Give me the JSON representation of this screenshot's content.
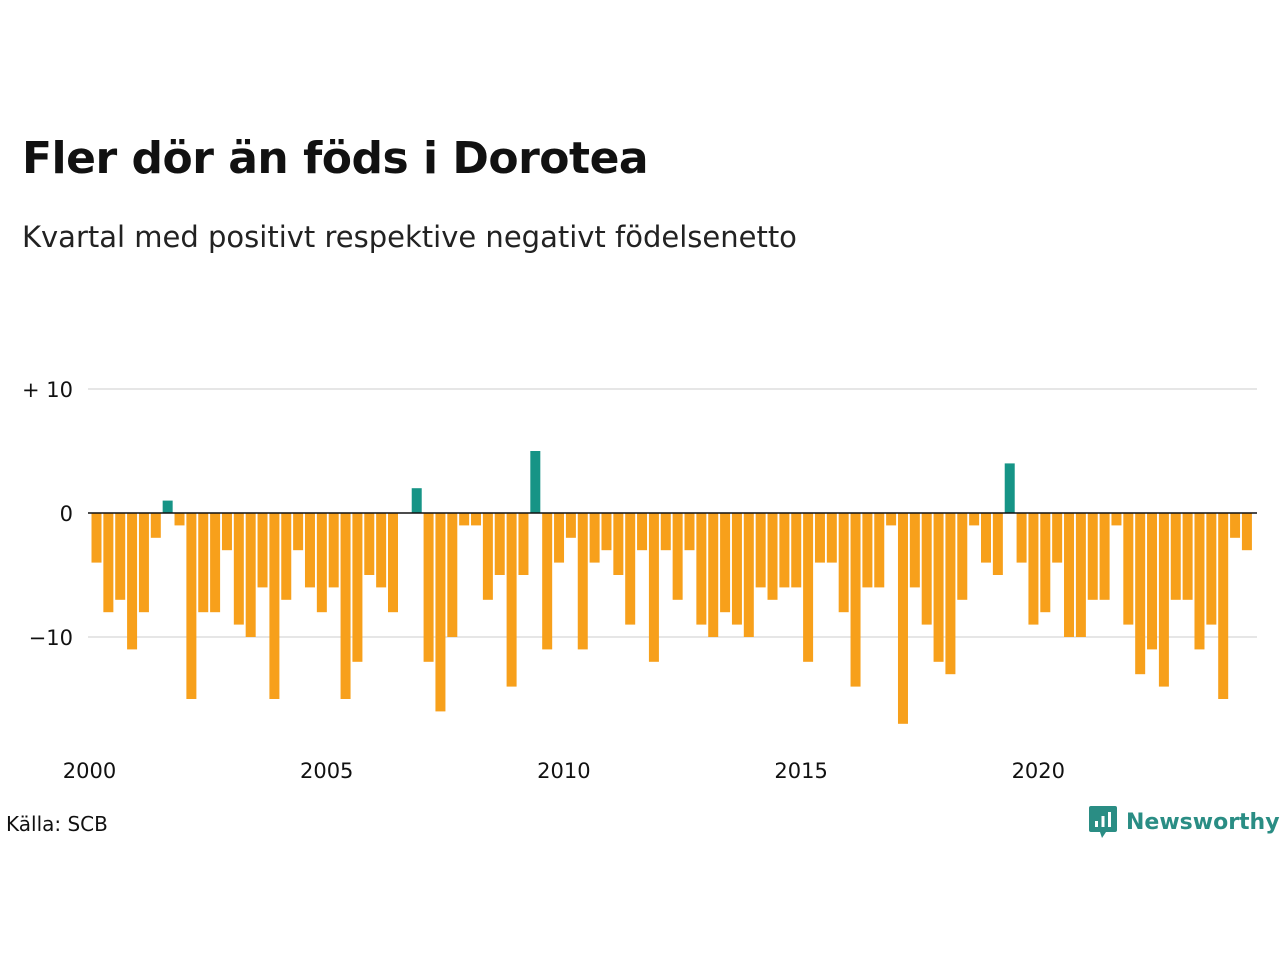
{
  "title": "Fler dör än föds i Dorotea",
  "subtitle": "Kvartal med positivt respektive negativt födelsenetto",
  "source": "Källa: SCB",
  "brand": {
    "name": "Newsworthy",
    "icon": "chart-speech-bubble-icon",
    "color": "#2a8d84"
  },
  "colors": {
    "positive": "#169486",
    "negative": "#f7a01b",
    "grid": "#dddddd",
    "zero": "#111111"
  },
  "chart_data": {
    "type": "bar",
    "x_start": 2000,
    "x_step": 0.25,
    "x_ticks": [
      2000,
      2005,
      2010,
      2015,
      2020
    ],
    "x_tick_labels": [
      "2000",
      "2005",
      "2010",
      "2015",
      "2020"
    ],
    "y_ticks": [
      10,
      0,
      -10
    ],
    "y_tick_labels": [
      "+ 10",
      "0",
      "−10"
    ],
    "ylim": [
      -20,
      10
    ],
    "grid": true,
    "values": [
      -4,
      -8,
      -7,
      -11,
      -8,
      -2,
      1,
      -1,
      -15,
      -8,
      -8,
      -3,
      -9,
      -10,
      -6,
      -15,
      -7,
      -3,
      -6,
      -8,
      -6,
      -15,
      -12,
      -5,
      -6,
      -8,
      0,
      2,
      -12,
      -16,
      -10,
      -1,
      -1,
      -7,
      -5,
      -14,
      -5,
      5,
      -11,
      -4,
      -2,
      -11,
      -4,
      -3,
      -5,
      -9,
      -3,
      -12,
      -3,
      -7,
      -3,
      -9,
      -10,
      -8,
      -9,
      -10,
      -6,
      -7,
      -6,
      -6,
      -12,
      -4,
      -4,
      -8,
      -14,
      -6,
      -6,
      -1,
      -17,
      -6,
      -9,
      -12,
      -13,
      -7,
      -1,
      -4,
      -5,
      4,
      -4,
      -9,
      -8,
      -4,
      -10,
      -10,
      -7,
      -7,
      -1,
      -9,
      -13,
      -11,
      -14,
      -7,
      -7,
      -11,
      -9,
      -15,
      -2,
      -3
    ]
  }
}
